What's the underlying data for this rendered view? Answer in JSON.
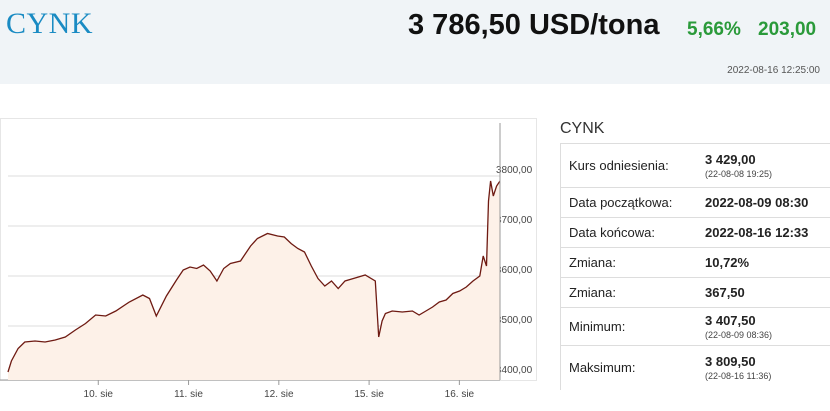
{
  "header": {
    "title": "CYNK",
    "price": "3 786,50 USD/tona",
    "change_pct": "5,66%",
    "change_abs": "203,00",
    "timestamp": "2022-08-16 12:25:00"
  },
  "info": {
    "title": "CYNK",
    "rows": [
      {
        "label": "Kurs odniesienia:",
        "value": "3 429,00",
        "sub": "(22-08-08 19:25)"
      },
      {
        "label": "Data początkowa:",
        "value": "2022-08-09 08:30",
        "sub": ""
      },
      {
        "label": "Data końcowa:",
        "value": "2022-08-16 12:33",
        "sub": ""
      },
      {
        "label": "Zmiana:",
        "value": "10,72%",
        "sub": ""
      },
      {
        "label": "Zmiana:",
        "value": "367,50",
        "sub": ""
      },
      {
        "label": "Minimum:",
        "value": "3 407,50",
        "sub": "(22-08-09 08:36)"
      },
      {
        "label": "Maksimum:",
        "value": "3 809,50",
        "sub": "(22-08-16 11:36)"
      }
    ]
  },
  "colors": {
    "line": "#6e1a12",
    "fill": "#fdf1e8",
    "positive": "#2a9a3a",
    "title": "#1a8bc3"
  },
  "chart_data": {
    "type": "area",
    "x_tick_labels": [
      "10. sie",
      "11. sie",
      "12. sie",
      "15. sie",
      "16. sie"
    ],
    "y_tick_labels": [
      "3800,00",
      "3700,00",
      "3600,00",
      "3500,00",
      "3400,00"
    ],
    "ylim": [
      3400,
      3800
    ],
    "grid": true,
    "series": [
      {
        "x": [
          0.0,
          0.05,
          0.15,
          0.25,
          0.4,
          0.55,
          0.7,
          0.85,
          1.0,
          1.15,
          1.3,
          1.45,
          1.6,
          1.8,
          2.0,
          2.1,
          2.2,
          2.35,
          2.5,
          2.6,
          2.7,
          2.8,
          2.9,
          3.0,
          3.1,
          3.2,
          3.3,
          3.45,
          3.6,
          3.7,
          3.85,
          4.0,
          4.1,
          4.2,
          4.3,
          4.4,
          4.5,
          4.6,
          4.7,
          4.8,
          4.9,
          5.0,
          5.15,
          5.3,
          5.45,
          5.5,
          5.55,
          5.6,
          5.7,
          5.85,
          6.0,
          6.1,
          6.2,
          6.3,
          6.4,
          6.5,
          6.6,
          6.7,
          6.8,
          6.9,
          7.0,
          7.05,
          7.1,
          7.13,
          7.16,
          7.2,
          7.25,
          7.3
        ],
        "values": [
          3408,
          3430,
          3455,
          3468,
          3470,
          3468,
          3472,
          3478,
          3492,
          3505,
          3522,
          3520,
          3530,
          3548,
          3562,
          3555,
          3520,
          3560,
          3592,
          3612,
          3618,
          3615,
          3622,
          3610,
          3590,
          3615,
          3625,
          3630,
          3660,
          3675,
          3685,
          3680,
          3678,
          3665,
          3655,
          3648,
          3620,
          3595,
          3580,
          3590,
          3575,
          3590,
          3596,
          3602,
          3590,
          3478,
          3510,
          3525,
          3530,
          3528,
          3530,
          3522,
          3530,
          3538,
          3548,
          3552,
          3565,
          3570,
          3578,
          3590,
          3600,
          3640,
          3620,
          3750,
          3790,
          3760,
          3780,
          3790
        ]
      }
    ]
  }
}
